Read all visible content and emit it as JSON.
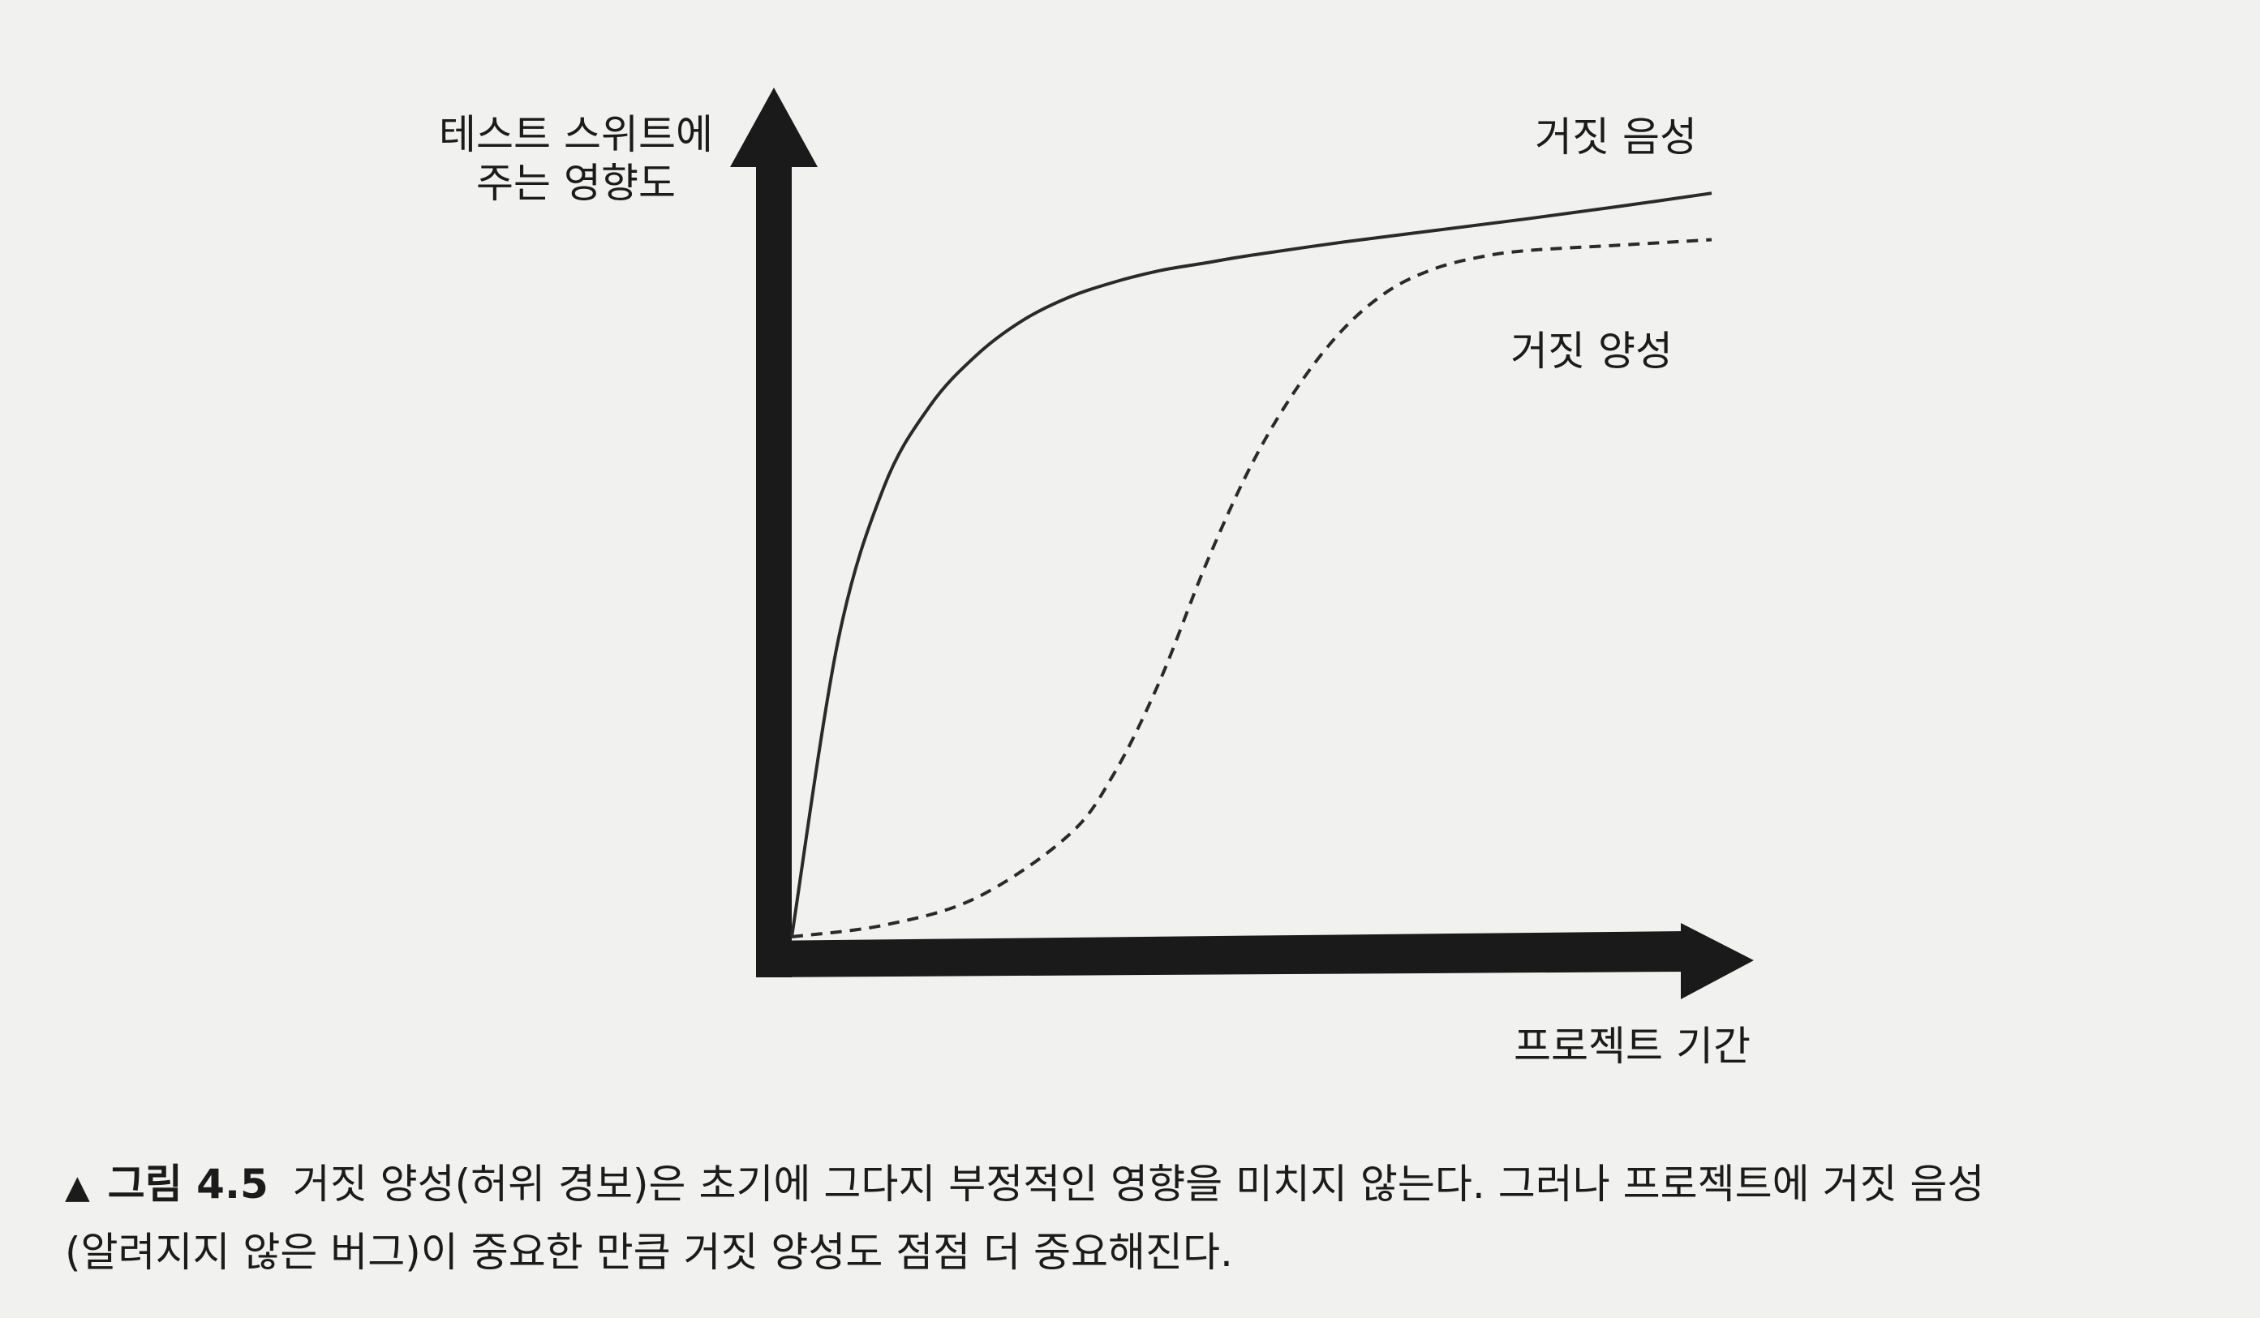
{
  "chart_data": {
    "type": "line",
    "ylabel_lines": [
      "테스트 스위트에",
      "주는 영향도"
    ],
    "xlabel": "프로젝트 기간",
    "xlim": [
      0,
      100
    ],
    "ylim": [
      0,
      100
    ],
    "grid": false,
    "series": [
      {
        "name": "거짓 음성",
        "style": "solid",
        "x": [
          0,
          5,
          10,
          15,
          20,
          25,
          30,
          35,
          40,
          45,
          50,
          60,
          70,
          80,
          90,
          100
        ],
        "y": [
          0,
          38,
          58,
          68.5,
          75,
          79.5,
          82.5,
          84.5,
          86,
          87,
          88,
          89.7,
          91.2,
          92.7,
          94.3,
          96
        ]
      },
      {
        "name": "거짓 양성",
        "style": "dashed",
        "x": [
          0,
          10,
          20,
          30,
          35,
          40,
          45,
          50,
          55,
          60,
          65,
          70,
          75,
          80,
          90,
          100
        ],
        "y": [
          0,
          1.5,
          5,
          13,
          21,
          33,
          48,
          61,
          71,
          78.5,
          83.5,
          86.3,
          87.8,
          88.6,
          89.3,
          90
        ]
      }
    ]
  },
  "caption": {
    "marker": "▲",
    "figure_label": "그림 4.5",
    "line1": "거짓 양성(허위 경보)은 초기에 그다지 부정적인 영향을 미치지 않는다. 그러나 프로젝트에 거짓 음성",
    "line2": "(알려지지 않은 버그)이 중요한 만큼 거짓 양성도 점점 더 중요해진다."
  },
  "colors": {
    "background": "#f1f1ef",
    "ink": "#1b1b1b",
    "axis": "#1a1a1a"
  }
}
